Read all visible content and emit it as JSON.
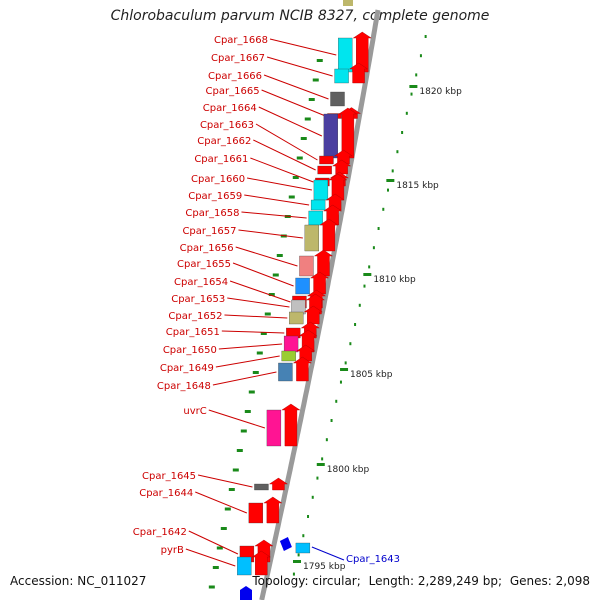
{
  "title": "Chlorobaculum parvum NCIB 8327, complete genome",
  "footer": {
    "accession": "Accession: NC_011027",
    "topology": "Topology: circular;",
    "length": "Length: 2,289,249 bp;",
    "genes": "Genes: 2,098"
  },
  "colors": {
    "backbone": "#9a9a9a",
    "gene_label": "#cc0000",
    "reverse_label": "#0000cc",
    "forward_arrow": "#ff0000",
    "tick": "#1a8a1a"
  },
  "scale_ticks": [
    "1820 kbp",
    "1815 kbp",
    "1810 kbp",
    "1805 kbp",
    "1800 kbp",
    "1795 kbp"
  ],
  "genes": [
    {
      "label": "Cpar_1668",
      "strand": "forward",
      "color": "#00e5ee"
    },
    {
      "label": "Cpar_1667",
      "strand": "forward",
      "color": "#00e5ee"
    },
    {
      "label": "Cpar_1666",
      "strand": "forward",
      "color": "#606060"
    },
    {
      "label": "Cpar_1665",
      "strand": "forward",
      "color": "#ff0000"
    },
    {
      "label": "Cpar_1664",
      "strand": "forward",
      "color": "#4a3fa0"
    },
    {
      "label": "Cpar_1663",
      "strand": "forward",
      "color": "#ff0000"
    },
    {
      "label": "Cpar_1662",
      "strand": "forward",
      "color": "#ff0000"
    },
    {
      "label": "Cpar_1661",
      "strand": "forward",
      "color": "#ff0000"
    },
    {
      "label": "Cpar_1660",
      "strand": "forward",
      "color": "#00e5ee"
    },
    {
      "label": "Cpar_1659",
      "strand": "forward",
      "color": "#00e5ee"
    },
    {
      "label": "Cpar_1658",
      "strand": "forward",
      "color": "#00e5ee"
    },
    {
      "label": "Cpar_1657",
      "strand": "forward",
      "color": "#bdb76b"
    },
    {
      "label": "Cpar_1656",
      "strand": "forward",
      "color": "#f08080"
    },
    {
      "label": "Cpar_1655",
      "strand": "forward",
      "color": "#1e90ff"
    },
    {
      "label": "Cpar_1654",
      "strand": "forward",
      "color": "#ff0000"
    },
    {
      "label": "Cpar_1653",
      "strand": "forward",
      "color": "#c0c0c0"
    },
    {
      "label": "Cpar_1652",
      "strand": "forward",
      "color": "#bdb76b"
    },
    {
      "label": "Cpar_1651",
      "strand": "forward",
      "color": "#ff0000"
    },
    {
      "label": "Cpar_1650",
      "strand": "forward",
      "color": "#ff1493"
    },
    {
      "label": "Cpar_1649",
      "strand": "forward",
      "color": "#9acd32"
    },
    {
      "label": "Cpar_1648",
      "strand": "forward",
      "color": "#4682b4"
    },
    {
      "label": "uvrC",
      "strand": "forward",
      "color": "#ff1493"
    },
    {
      "label": "Cpar_1645",
      "strand": "forward",
      "color": "#606060"
    },
    {
      "label": "Cpar_1644",
      "strand": "forward",
      "color": "#ff0000"
    },
    {
      "label": "Cpar_1643",
      "strand": "reverse",
      "color": "#00bfff"
    },
    {
      "label": "Cpar_1642",
      "strand": "forward",
      "color": "#ff0000"
    },
    {
      "label": "pyrB",
      "strand": "forward",
      "color": "#00bfff"
    }
  ]
}
